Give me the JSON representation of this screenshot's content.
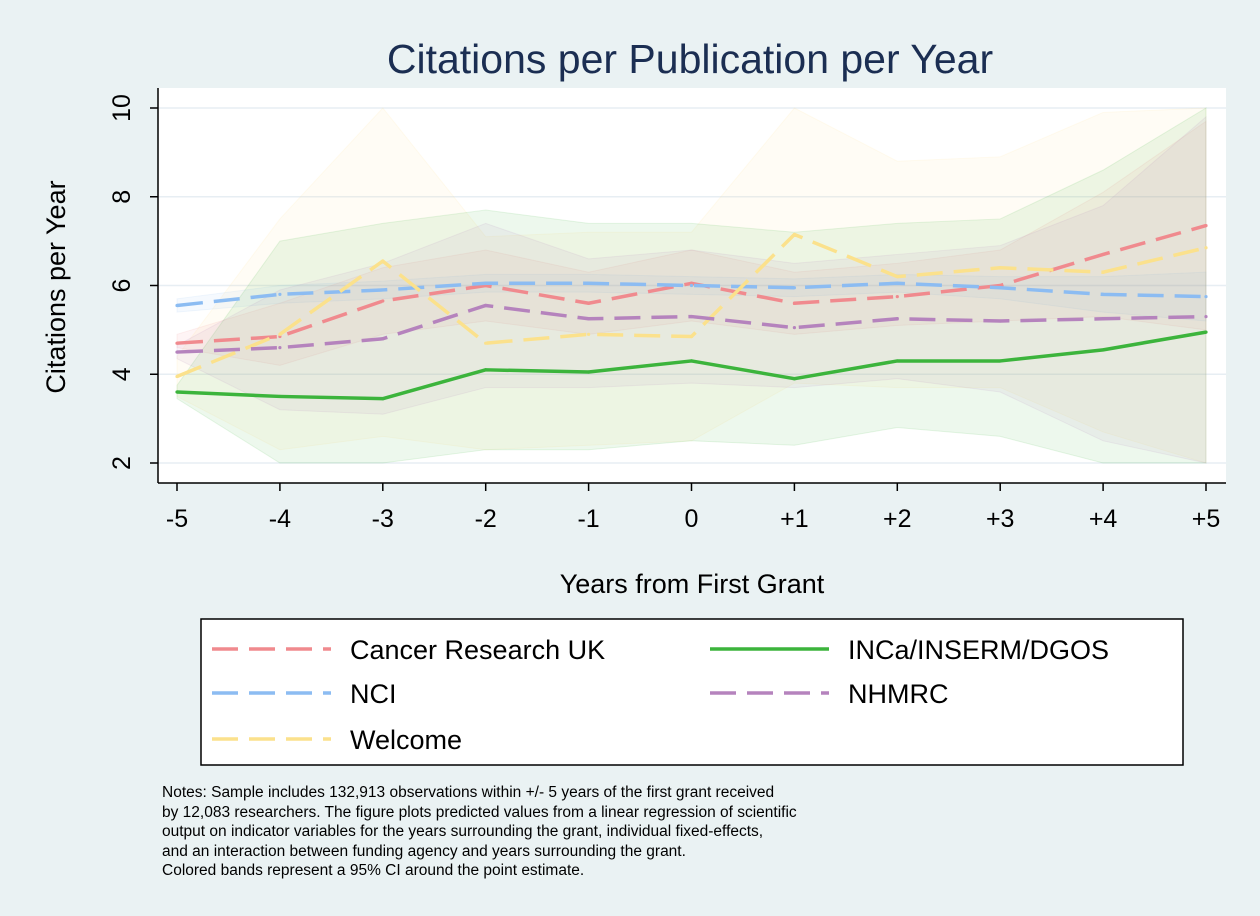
{
  "chart_data": {
    "type": "line",
    "title": "Citations per Publication per Year",
    "xlabel": "Years from First Grant",
    "ylabel": "Citations per Year",
    "categories": [
      "-5",
      "-4",
      "-3",
      "-2",
      "-1",
      "0",
      "+1",
      "+2",
      "+3",
      "+4",
      "+5"
    ],
    "y_ticks": [
      "2",
      "4",
      "6",
      "8",
      "10"
    ],
    "ylim": [
      2,
      10
    ],
    "grid": true,
    "legend_position": "bottom",
    "series": [
      {
        "name": "Cancer Research UK",
        "color": "#f08a8e",
        "dash": "dashed",
        "values": [
          4.7,
          4.85,
          5.65,
          6.0,
          5.6,
          6.05,
          5.6,
          5.75,
          6.0,
          6.7,
          7.35
        ],
        "ci_lower": [
          4.6,
          4.2,
          4.9,
          5.2,
          4.9,
          5.2,
          4.9,
          5.1,
          5.2,
          5.3,
          5.0
        ],
        "ci_upper": [
          4.9,
          5.6,
          6.4,
          6.8,
          6.3,
          6.8,
          6.3,
          6.5,
          6.8,
          8.1,
          9.7
        ]
      },
      {
        "name": "NCI",
        "color": "#8cbcf2",
        "dash": "dashed",
        "values": [
          5.55,
          5.8,
          5.9,
          6.05,
          6.05,
          6.0,
          5.95,
          6.05,
          5.95,
          5.8,
          5.75
        ],
        "ci_lower": [
          5.4,
          5.6,
          5.7,
          5.85,
          5.85,
          5.8,
          5.75,
          5.85,
          5.7,
          5.4,
          5.2
        ],
        "ci_upper": [
          5.7,
          6.0,
          6.1,
          6.25,
          6.25,
          6.2,
          6.15,
          6.25,
          6.2,
          6.2,
          6.3
        ]
      },
      {
        "name": "Welcome",
        "color": "#fbe18c",
        "dash": "dashed",
        "values": [
          3.95,
          4.9,
          6.55,
          4.7,
          4.9,
          4.85,
          7.15,
          6.2,
          6.4,
          6.3,
          6.85
        ],
        "ci_lower": [
          3.5,
          2.3,
          2.6,
          2.3,
          2.4,
          2.5,
          3.8,
          3.7,
          3.7,
          2.7,
          2.0
        ],
        "ci_upper": [
          4.4,
          7.5,
          10.0,
          7.1,
          7.2,
          7.2,
          10.0,
          8.8,
          8.9,
          9.9,
          10.0
        ]
      },
      {
        "name": "INCa/INSERM/DGOS",
        "color": "#3cb43c",
        "dash": "solid",
        "values": [
          3.6,
          3.5,
          3.45,
          4.1,
          4.05,
          4.3,
          3.9,
          4.3,
          4.3,
          4.55,
          4.95
        ],
        "ci_lower": [
          3.45,
          2.0,
          2.0,
          2.3,
          2.3,
          2.5,
          2.4,
          2.8,
          2.6,
          2.0,
          2.0
        ],
        "ci_upper": [
          3.75,
          7.0,
          7.4,
          7.7,
          7.4,
          7.4,
          7.2,
          7.4,
          7.5,
          8.6,
          10.0
        ]
      },
      {
        "name": "NHMRC",
        "color": "#b583bd",
        "dash": "dashed",
        "values": [
          4.5,
          4.6,
          4.8,
          5.55,
          5.25,
          5.3,
          5.05,
          5.25,
          5.2,
          5.25,
          5.3
        ],
        "ci_lower": [
          4.35,
          3.2,
          3.1,
          3.7,
          3.7,
          3.8,
          3.7,
          3.9,
          3.6,
          2.5,
          2.0
        ],
        "ci_upper": [
          4.65,
          5.9,
          6.5,
          7.4,
          6.6,
          6.8,
          6.5,
          6.7,
          6.9,
          7.8,
          9.8
        ]
      }
    ]
  },
  "notes": [
    "Notes: Sample includes 132,913 observations within +/- 5 years of the first grant received",
    "by 12,083 researchers. The figure plots predicted values from a linear regression of scientific",
    "output on indicator variables for the years surrounding the grant, individual fixed-effects,",
    "and an interaction between funding agency and years surrounding the grant.",
    "Colored bands represent a 95% CI around the point estimate."
  ],
  "colors": {
    "background": "#eaf2f3",
    "plot_background": "#ffffff",
    "title": "#1b2e52"
  }
}
